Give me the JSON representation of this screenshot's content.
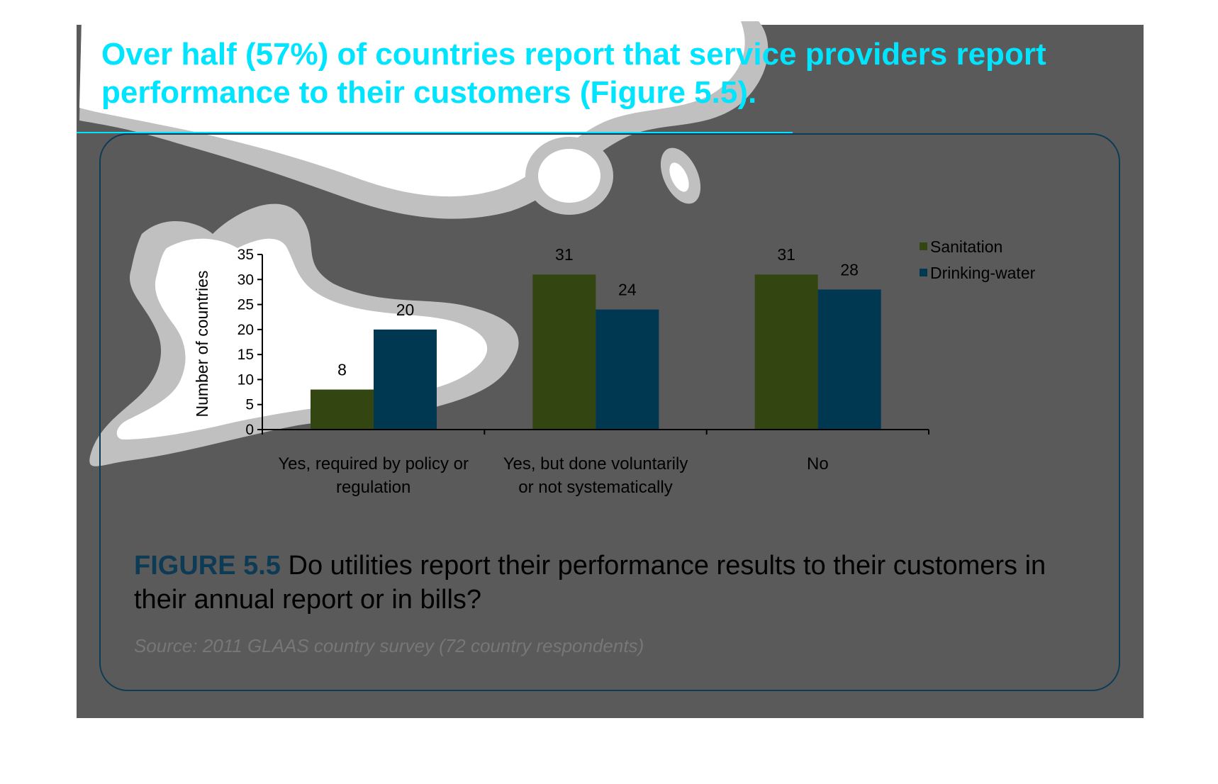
{
  "headline": "Over half (57%) of countries report that service providers report performance to their customers (Figure 5.5).",
  "figure": {
    "label": "FIGURE 5.5",
    "caption": "Do utilities report their performance results to their customers in their annual report or in bills?",
    "source": "Source: 2011 GLAAS country survey (72 country respondents)"
  },
  "colors": {
    "background": "#5a5a5a",
    "accent": "#00e5ff",
    "frame": "#0d3b55"
  },
  "chart_data": {
    "type": "bar",
    "title": "",
    "ylabel": "Number of countries",
    "xlabel": "",
    "ylim": [
      0,
      35
    ],
    "yticks": [
      0,
      5,
      10,
      15,
      20,
      25,
      30,
      35
    ],
    "categories": [
      [
        "Yes, required by policy or",
        "regulation"
      ],
      [
        "Yes, but done voluntarily",
        "or not systematically"
      ],
      [
        "No"
      ]
    ],
    "series": [
      {
        "name": "Sanitation",
        "values": [
          8,
          31,
          31
        ],
        "color": "#334510"
      },
      {
        "name": "Drinking-water",
        "values": [
          20,
          24,
          28
        ],
        "color": "#003852"
      }
    ],
    "legend_position": "top-right",
    "grid": false
  }
}
